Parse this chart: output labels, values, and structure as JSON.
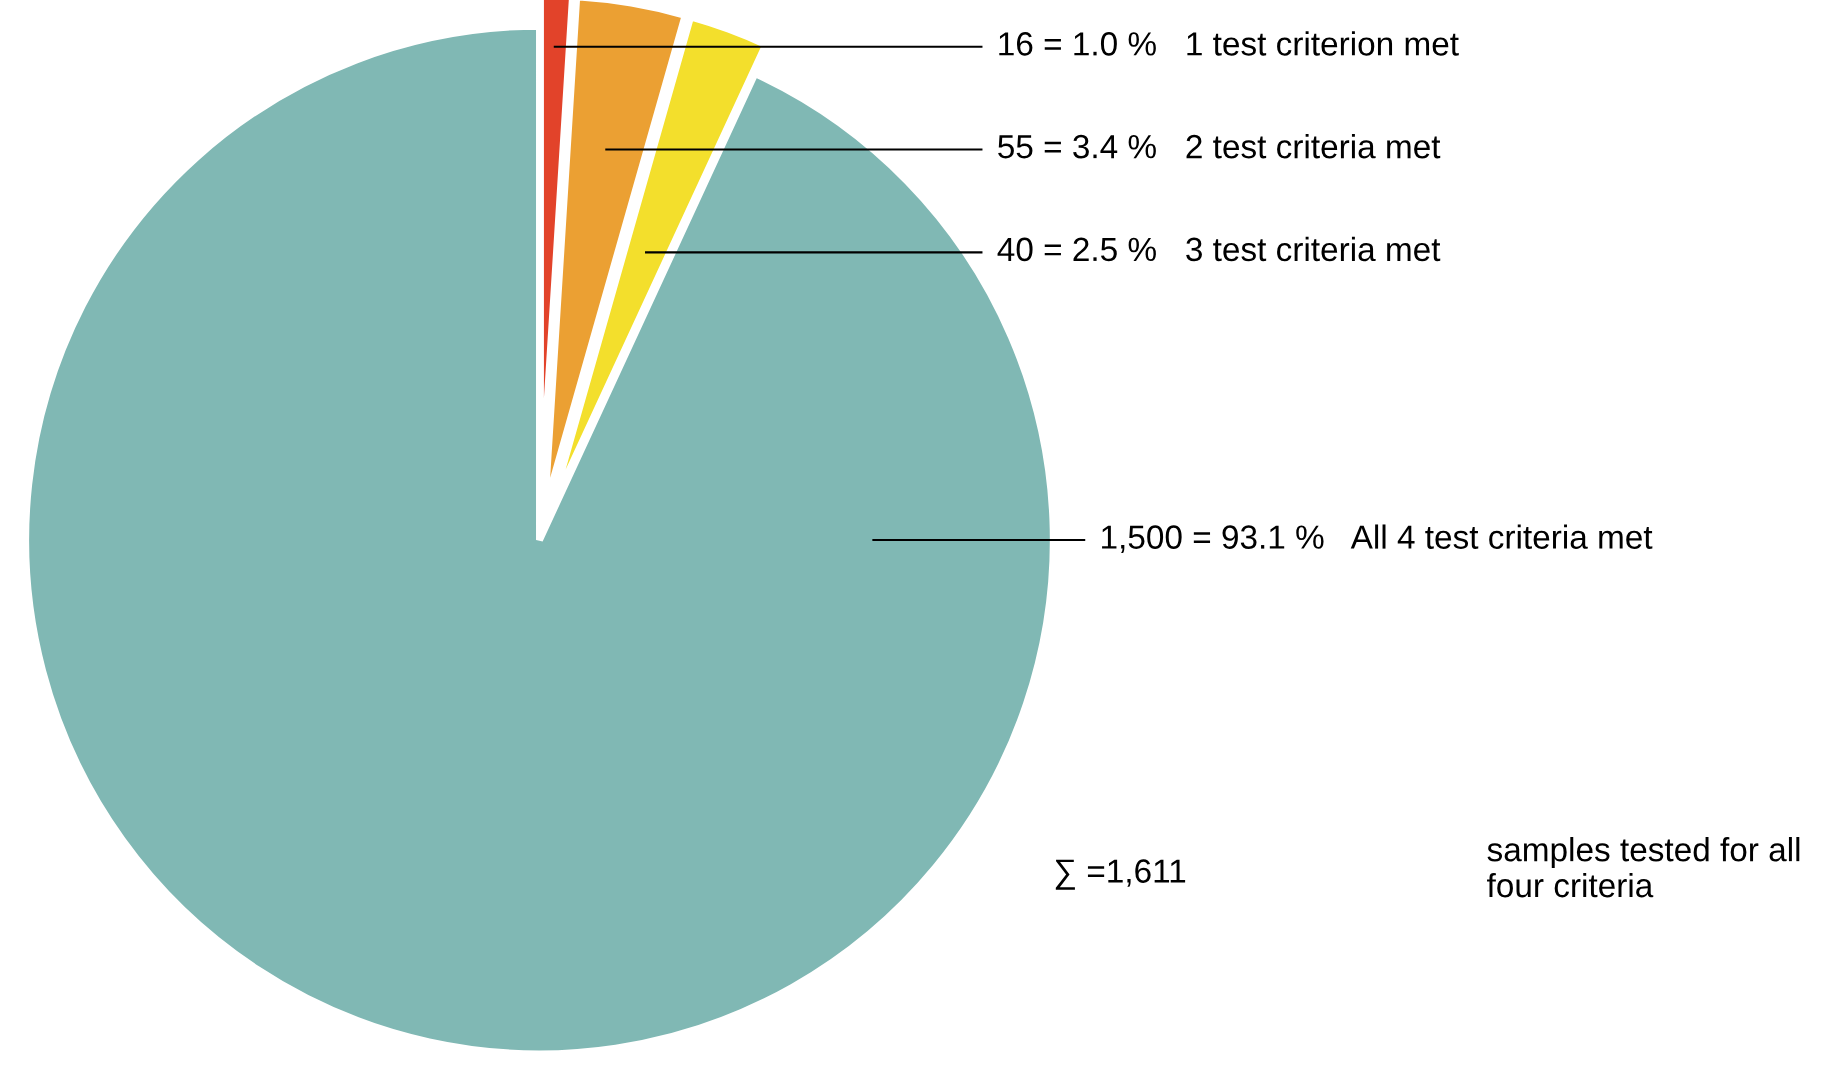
{
  "chart_data": {
    "type": "pie",
    "categories": [
      "1 test criterion met",
      "2 test criteria met",
      "3 test criteria met",
      "All 4 test criteria met"
    ],
    "values": [
      16,
      55,
      40,
      1500
    ],
    "value_labels": [
      "16 = 1.0 %",
      "55 = 3.4 %",
      "40 = 2.5 %",
      "1,500 = 93.1 %"
    ],
    "colors": [
      "#e2432a",
      "#eba033",
      "#f3df2c",
      "#80b8b4"
    ],
    "annotations": [
      "∑ =1,611",
      "samples tested for all four criteria"
    ]
  }
}
